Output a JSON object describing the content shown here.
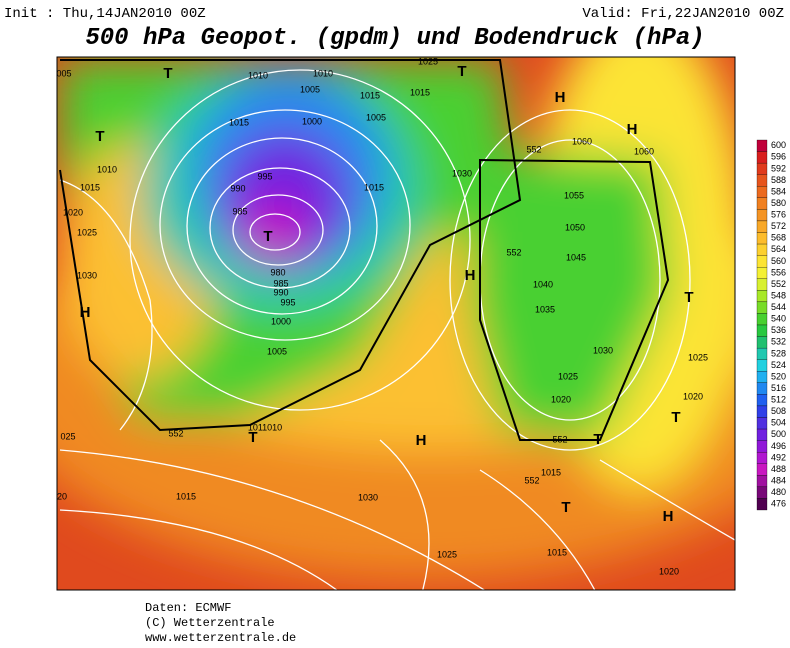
{
  "header": {
    "init": "Init : Thu,14JAN2010 00Z",
    "valid": "Valid: Fri,22JAN2010 00Z",
    "title": "500 hPa Geopot. (gpdm) und Bodendruck (hPa)"
  },
  "colorbar": {
    "levels": [
      600,
      596,
      592,
      588,
      584,
      580,
      576,
      572,
      568,
      564,
      560,
      556,
      552,
      548,
      544,
      540,
      536,
      532,
      528,
      524,
      520,
      516,
      512,
      508,
      504,
      500,
      496,
      492,
      488,
      484,
      480,
      476
    ],
    "colors": [
      "#c0003a",
      "#d81e1e",
      "#e03a1c",
      "#e6541c",
      "#ec6a1e",
      "#f08020",
      "#f49424",
      "#f8a828",
      "#fcbc2c",
      "#fcd030",
      "#fce434",
      "#f4f034",
      "#d8f030",
      "#a8e828",
      "#78dc28",
      "#48d030",
      "#28c840",
      "#20c070",
      "#20c8b0",
      "#20d0e0",
      "#20b0f0",
      "#2088f0",
      "#2060f0",
      "#3040e8",
      "#5030e0",
      "#7020e0",
      "#9018d8",
      "#b018d0",
      "#c818c0",
      "#a010a0",
      "#780878",
      "#500050"
    ]
  },
  "map": {
    "labels": [
      "005",
      "T",
      "1010",
      "1010",
      "1025",
      "T",
      "H",
      "H",
      "T",
      "1015",
      "1005",
      "1015",
      "1015",
      "1000",
      "1005",
      "1010",
      "1015",
      "1020",
      "1025",
      "1030",
      "H",
      "1060",
      "1060",
      "552",
      "1030",
      "1015",
      "1055",
      "1050",
      "1045",
      "552",
      "H",
      "1040",
      "1035",
      "T",
      "1030",
      "1025",
      "1025",
      "1020",
      "1020",
      "T",
      "995",
      "990",
      "985",
      "T",
      "980",
      "985",
      "990",
      "995",
      "1000",
      "1005",
      "552",
      "1011010",
      "T",
      "H",
      "T",
      "552",
      "025",
      "1015",
      "552",
      "T",
      "H",
      "1015",
      "1030",
      "20",
      "1025",
      "1015",
      "1020"
    ]
  },
  "footer": {
    "source": "Daten: ECMWF",
    "copyright": "(C) Wetterzentrale",
    "url": "www.wetterzentrale.de"
  }
}
